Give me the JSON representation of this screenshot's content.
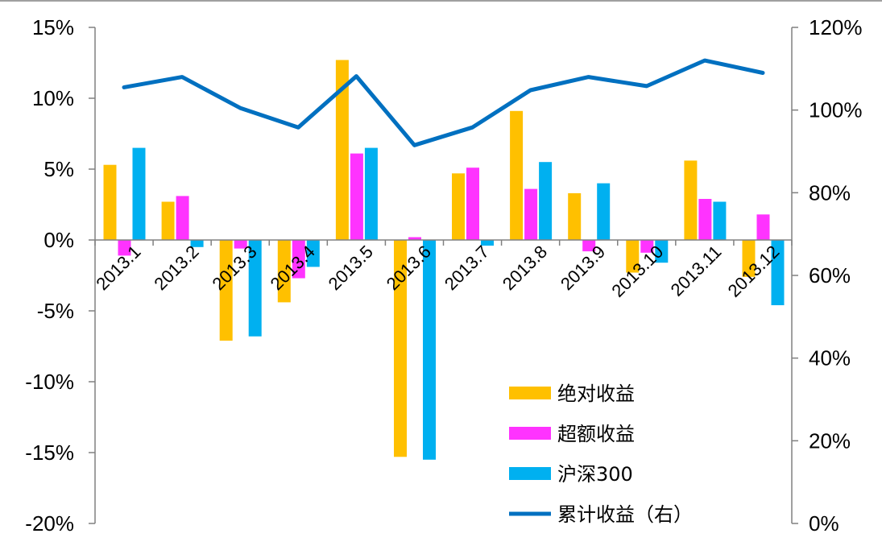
{
  "chart_data": {
    "type": "bar",
    "title": "",
    "categories": [
      "2013.1",
      "2013.2",
      "2013.3",
      "2013.4",
      "2013.5",
      "2013.6",
      "2013.7",
      "2013.8",
      "2013.9",
      "2013.10",
      "2013.11",
      "2013.12"
    ],
    "series": [
      {
        "name": "绝对收益",
        "type": "bar",
        "axis": "left",
        "color": "#FFC000",
        "values": [
          5.3,
          2.7,
          -7.1,
          -4.4,
          12.7,
          -15.3,
          4.7,
          9.1,
          3.3,
          -2.3,
          5.6,
          -2.6
        ]
      },
      {
        "name": "超额收益",
        "type": "bar",
        "axis": "left",
        "color": "#FF33FF",
        "values": [
          -1.1,
          3.1,
          -0.6,
          -2.7,
          6.1,
          0.2,
          5.1,
          3.6,
          -0.8,
          -0.9,
          2.9,
          1.8
        ]
      },
      {
        "name": "沪深300",
        "type": "bar",
        "axis": "left",
        "color": "#00B0F0",
        "values": [
          6.5,
          -0.5,
          -6.8,
          -1.9,
          6.5,
          -15.5,
          -0.4,
          5.5,
          4.0,
          -1.6,
          2.7,
          -4.6
        ]
      },
      {
        "name": "累计收益（右）",
        "type": "line",
        "axis": "right",
        "color": "#0070C0",
        "values": [
          105.5,
          108.0,
          100.5,
          95.8,
          108.2,
          91.5,
          95.8,
          104.8,
          108.0,
          105.8,
          112.0,
          109.0
        ]
      }
    ],
    "y_left": {
      "min": -20,
      "max": 15,
      "step": 5,
      "tick_labels": [
        "15%",
        "10%",
        "5%",
        "0%",
        "-5%",
        "-10%",
        "-15%",
        "-20%"
      ]
    },
    "y_right": {
      "min": 0,
      "max": 120,
      "step": 20,
      "tick_labels": [
        "120%",
        "100%",
        "80%",
        "60%",
        "40%",
        "20%",
        "0%"
      ]
    },
    "legend_position": "bottom-right-inside",
    "grid": false
  }
}
